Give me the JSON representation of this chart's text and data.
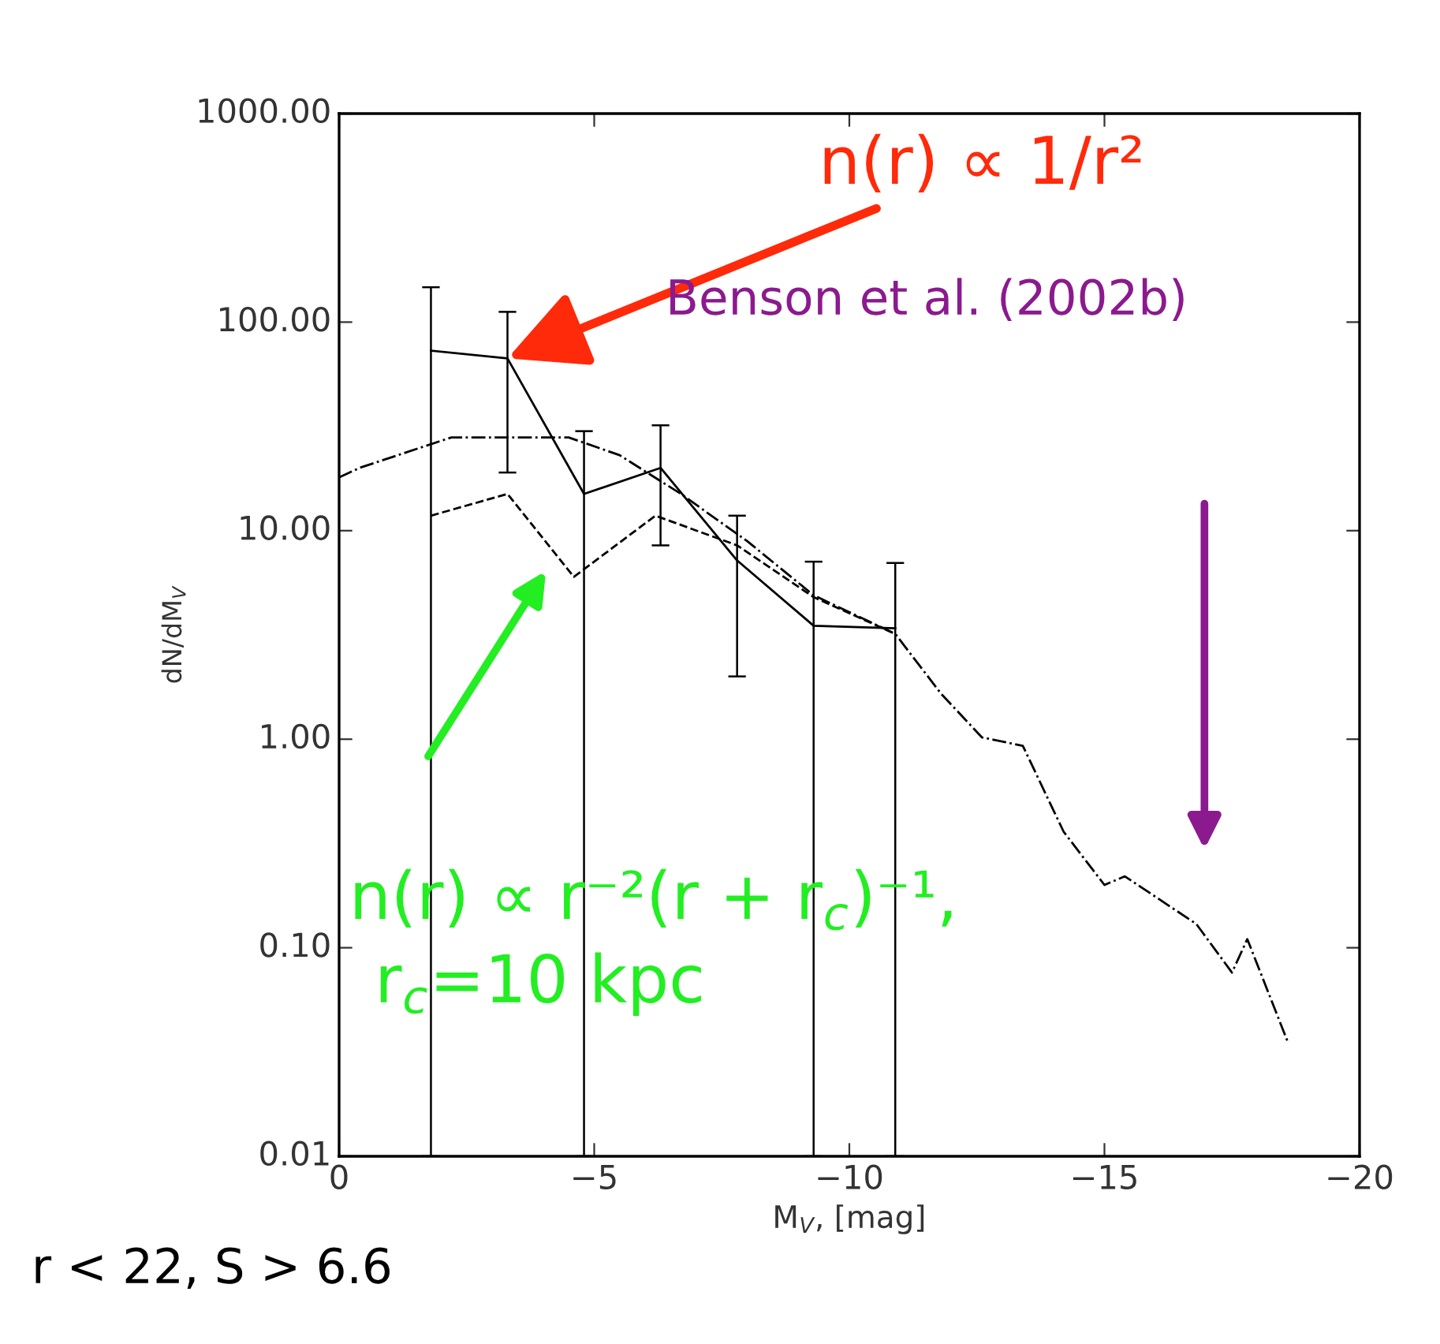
{
  "chart_data": {
    "type": "line",
    "xlabel": "M$_{V}$, [mag]",
    "ylabel": "dN/dM$_{V}$",
    "log": "y",
    "xlim": [
      0,
      -20
    ],
    "ylim": [
      0.01,
      1000
    ],
    "xticks": [
      0,
      {
        "value": -5,
        "label": "−5"
      },
      {
        "value": -10,
        "label": "−10"
      },
      {
        "value": -15,
        "label": "−15"
      },
      {
        "value": -20,
        "label": "−20"
      }
    ],
    "yticks": [
      {
        "value": 0.01,
        "label": "0.01"
      },
      {
        "value": 0.1,
        "label": "0.10"
      },
      {
        "value": 1,
        "label": "1.00"
      },
      {
        "value": 10,
        "label": "10.00"
      },
      {
        "value": 100,
        "label": "100.00"
      },
      {
        "value": 1000,
        "label": "1000.00"
      }
    ],
    "grid": false,
    "legend": false,
    "series": [
      {
        "color": "#000000",
        "line_style": "solid",
        "x": [
          -1.8,
          -3.3,
          -4.8,
          -6.3,
          -7.8,
          -9.3,
          -10.9
        ],
        "values": [
          73,
          67,
          15,
          20,
          7.2,
          3.5,
          3.4
        ],
        "errors": [
          [
            0.01,
            147
          ],
          [
            19,
            112
          ],
          [
            0.01,
            30
          ],
          [
            8.5,
            32
          ],
          [
            2.0,
            11.8
          ],
          [
            0.01,
            7.1
          ],
          [
            0.01,
            7.0
          ]
        ]
      },
      {
        "color": "#000000",
        "line_style": "dashed",
        "x": [
          -1.8,
          -3.3,
          -4.6,
          -6.2,
          -7.8,
          -9.3,
          -10.9
        ],
        "values": [
          11.8,
          15,
          6.0,
          11.8,
          8.5,
          4.8,
          3.2
        ]
      },
      {
        "color": "#000000",
        "line_style": "dashdot",
        "x": [
          0,
          -0.4,
          -2.2,
          -3.3,
          -4.5,
          -5.5,
          -6.7,
          -8.0,
          -9.3,
          -10.9,
          -11.8,
          -12.6,
          -13.4,
          -14.2,
          -15.0,
          -15.4,
          -16.8,
          -17.5,
          -17.8,
          -18.6
        ],
        "values": [
          18,
          20,
          28,
          28,
          28,
          23,
          15,
          8.9,
          4.9,
          3.2,
          1.65,
          1.02,
          0.93,
          0.36,
          0.2,
          0.22,
          0.13,
          0.076,
          0.11,
          0.035
        ]
      }
    ],
    "annotations": [
      {
        "text": "n(r) ∝ 1/r²",
        "x": -3.3,
        "y": 67
      },
      "Benson et al. (2002b)",
      "n(r) ∝ r⁻²(r + r$_{c}$)⁻¹,",
      "r$_{c}$=10 kpc",
      "r < 22, S > 6.6"
    ]
  }
}
